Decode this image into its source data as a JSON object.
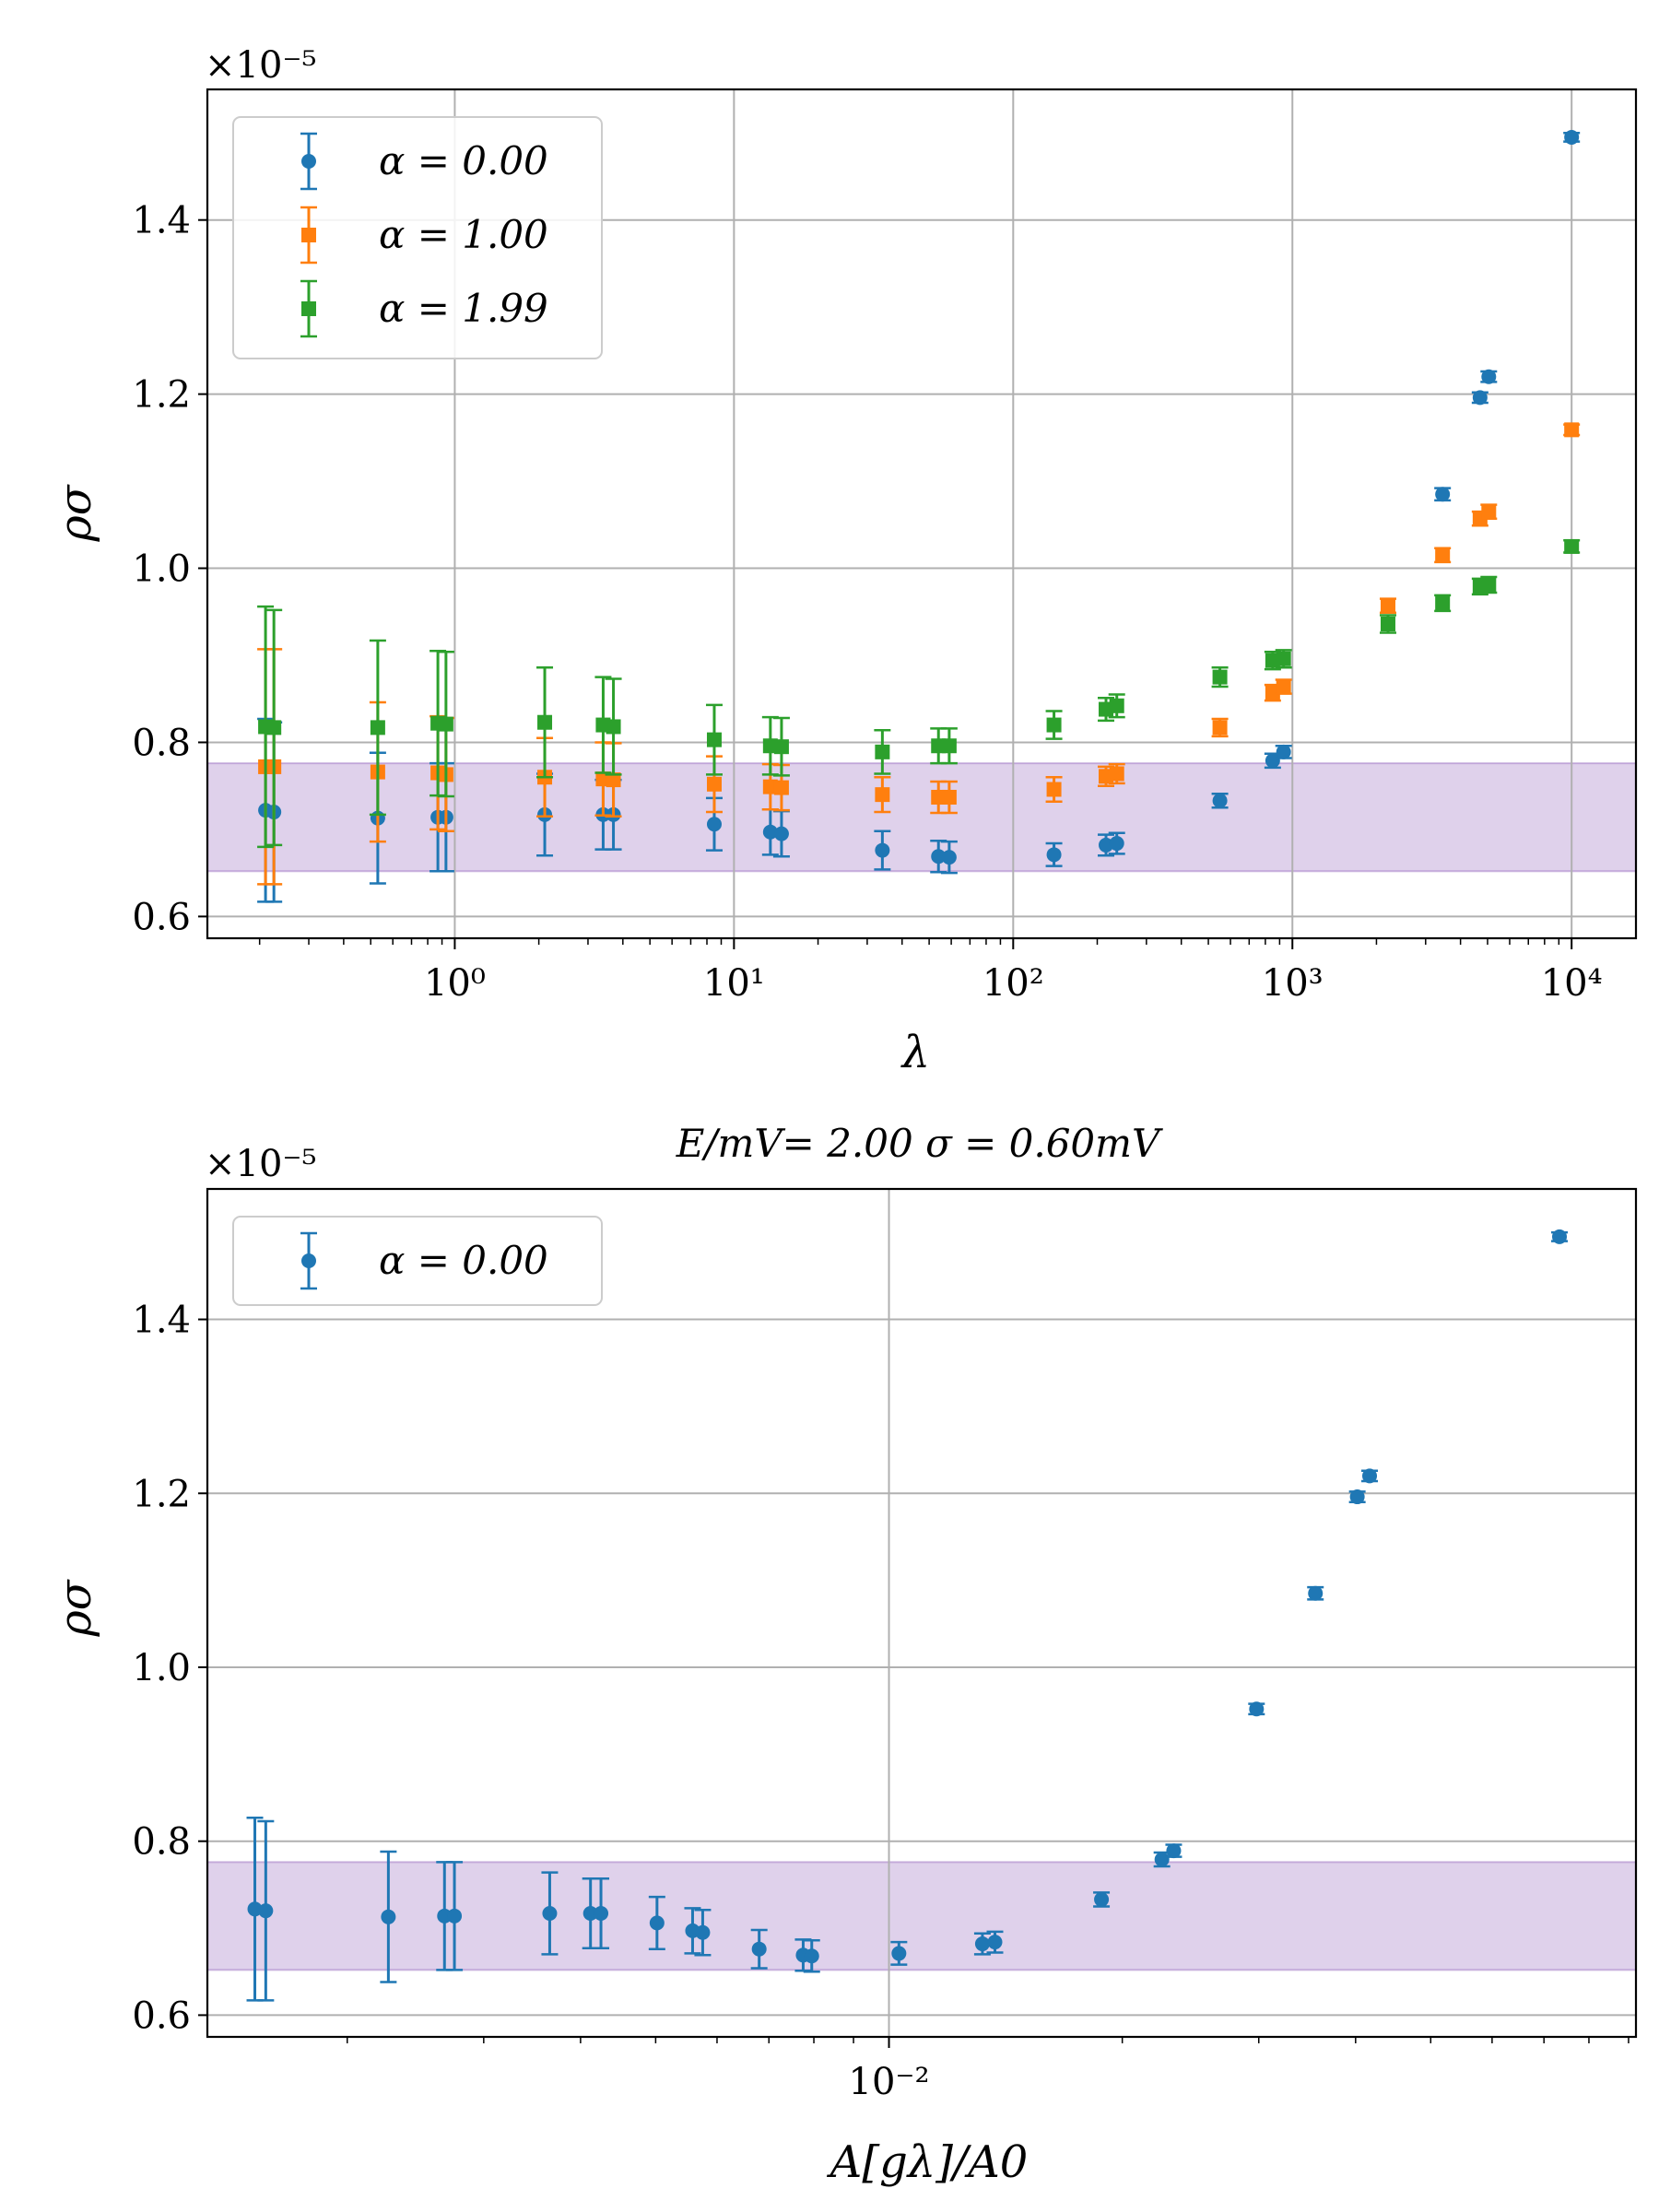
{
  "chart_data": [
    {
      "type": "scatter",
      "title": "",
      "xlabel": "λ",
      "ylabel": "ρσ",
      "xscale": "log",
      "xlim": [
        0.13,
        17000
      ],
      "ylim": [
        0.575,
        1.55
      ],
      "y_multiplier": "×10⁻⁵",
      "x_ticks": [
        {
          "value": 1,
          "label": "10⁰"
        },
        {
          "value": 10,
          "label": "10¹"
        },
        {
          "value": 100,
          "label": "10²"
        },
        {
          "value": 1000,
          "label": "10³"
        },
        {
          "value": 10000,
          "label": "10⁴"
        }
      ],
      "y_ticks": [
        {
          "value": 0.6,
          "label": "0.6"
        },
        {
          "value": 0.8,
          "label": "0.8"
        },
        {
          "value": 1.0,
          "label": "1.0"
        },
        {
          "value": 1.2,
          "label": "1.2"
        },
        {
          "value": 1.4,
          "label": "1.4"
        }
      ],
      "grid": true,
      "legend_position": "top-left",
      "band": {
        "y_low": 0.652,
        "y_high": 0.776,
        "color": "#9467bd"
      },
      "series": [
        {
          "name": "α = 0.00",
          "color": "#1f77b4",
          "marker": "circle",
          "points": [
            {
              "x": 0.21,
              "y": 0.722,
              "err": 0.105
            },
            {
              "x": 0.225,
              "y": 0.72,
              "err": 0.103
            },
            {
              "x": 0.53,
              "y": 0.713,
              "err": 0.075
            },
            {
              "x": 0.87,
              "y": 0.714,
              "err": 0.062
            },
            {
              "x": 0.93,
              "y": 0.714,
              "err": 0.062
            },
            {
              "x": 2.1,
              "y": 0.717,
              "err": 0.047
            },
            {
              "x": 3.4,
              "y": 0.717,
              "err": 0.04
            },
            {
              "x": 3.7,
              "y": 0.717,
              "err": 0.04
            },
            {
              "x": 8.5,
              "y": 0.706,
              "err": 0.03
            },
            {
              "x": 13.5,
              "y": 0.697,
              "err": 0.026
            },
            {
              "x": 14.8,
              "y": 0.695,
              "err": 0.026
            },
            {
              "x": 34,
              "y": 0.676,
              "err": 0.022
            },
            {
              "x": 54,
              "y": 0.669,
              "err": 0.018
            },
            {
              "x": 59,
              "y": 0.668,
              "err": 0.018
            },
            {
              "x": 140,
              "y": 0.671,
              "err": 0.013
            },
            {
              "x": 215,
              "y": 0.682,
              "err": 0.012
            },
            {
              "x": 235,
              "y": 0.684,
              "err": 0.012
            },
            {
              "x": 550,
              "y": 0.733,
              "err": 0.008
            },
            {
              "x": 850,
              "y": 0.779,
              "err": 0.008
            },
            {
              "x": 930,
              "y": 0.789,
              "err": 0.007
            },
            {
              "x": 3450,
              "y": 1.085,
              "err": 0.007
            },
            {
              "x": 4700,
              "y": 1.196,
              "err": 0.006
            },
            {
              "x": 5050,
              "y": 1.22,
              "err": 0.006
            },
            {
              "x": 10000,
              "y": 1.495,
              "err": 0.005
            }
          ]
        },
        {
          "name": "α = 1.00",
          "color": "#ff7f0e",
          "marker": "square",
          "points": [
            {
              "x": 0.21,
              "y": 0.772,
              "err": 0.135
            },
            {
              "x": 0.225,
              "y": 0.772,
              "err": 0.135
            },
            {
              "x": 0.53,
              "y": 0.766,
              "err": 0.08
            },
            {
              "x": 0.87,
              "y": 0.765,
              "err": 0.065
            },
            {
              "x": 0.93,
              "y": 0.763,
              "err": 0.065
            },
            {
              "x": 2.1,
              "y": 0.76,
              "err": 0.045
            },
            {
              "x": 3.4,
              "y": 0.758,
              "err": 0.042
            },
            {
              "x": 3.7,
              "y": 0.757,
              "err": 0.042
            },
            {
              "x": 8.5,
              "y": 0.752,
              "err": 0.032
            },
            {
              "x": 13.5,
              "y": 0.749,
              "err": 0.026
            },
            {
              "x": 14.8,
              "y": 0.748,
              "err": 0.026
            },
            {
              "x": 34,
              "y": 0.74,
              "err": 0.02
            },
            {
              "x": 54,
              "y": 0.737,
              "err": 0.018
            },
            {
              "x": 59,
              "y": 0.737,
              "err": 0.018
            },
            {
              "x": 140,
              "y": 0.746,
              "err": 0.014
            },
            {
              "x": 215,
              "y": 0.761,
              "err": 0.011
            },
            {
              "x": 235,
              "y": 0.764,
              "err": 0.011
            },
            {
              "x": 550,
              "y": 0.817,
              "err": 0.01
            },
            {
              "x": 850,
              "y": 0.857,
              "err": 0.009
            },
            {
              "x": 930,
              "y": 0.864,
              "err": 0.008
            },
            {
              "x": 2200,
              "y": 0.957,
              "err": 0.008
            },
            {
              "x": 3450,
              "y": 1.015,
              "err": 0.008
            },
            {
              "x": 4700,
              "y": 1.057,
              "err": 0.008
            },
            {
              "x": 5050,
              "y": 1.065,
              "err": 0.008
            },
            {
              "x": 10000,
              "y": 1.159,
              "err": 0.006
            }
          ]
        },
        {
          "name": "α = 1.99",
          "color": "#2ca02c",
          "marker": "square",
          "points": [
            {
              "x": 0.21,
              "y": 0.818,
              "err": 0.138
            },
            {
              "x": 0.225,
              "y": 0.817,
              "err": 0.135
            },
            {
              "x": 0.53,
              "y": 0.817,
              "err": 0.1
            },
            {
              "x": 0.87,
              "y": 0.822,
              "err": 0.083
            },
            {
              "x": 0.93,
              "y": 0.821,
              "err": 0.083
            },
            {
              "x": 2.1,
              "y": 0.823,
              "err": 0.063
            },
            {
              "x": 3.4,
              "y": 0.82,
              "err": 0.055
            },
            {
              "x": 3.7,
              "y": 0.818,
              "err": 0.055
            },
            {
              "x": 8.5,
              "y": 0.803,
              "err": 0.04
            },
            {
              "x": 13.5,
              "y": 0.796,
              "err": 0.033
            },
            {
              "x": 14.8,
              "y": 0.795,
              "err": 0.033
            },
            {
              "x": 34,
              "y": 0.789,
              "err": 0.025
            },
            {
              "x": 54,
              "y": 0.796,
              "err": 0.02
            },
            {
              "x": 59,
              "y": 0.796,
              "err": 0.02
            },
            {
              "x": 140,
              "y": 0.82,
              "err": 0.016
            },
            {
              "x": 215,
              "y": 0.838,
              "err": 0.013
            },
            {
              "x": 235,
              "y": 0.842,
              "err": 0.013
            },
            {
              "x": 550,
              "y": 0.875,
              "err": 0.011
            },
            {
              "x": 850,
              "y": 0.894,
              "err": 0.01
            },
            {
              "x": 930,
              "y": 0.896,
              "err": 0.01
            },
            {
              "x": 2200,
              "y": 0.936,
              "err": 0.01
            },
            {
              "x": 3450,
              "y": 0.96,
              "err": 0.009
            },
            {
              "x": 4700,
              "y": 0.979,
              "err": 0.009
            },
            {
              "x": 5050,
              "y": 0.981,
              "err": 0.009
            },
            {
              "x": 10000,
              "y": 1.025,
              "err": 0.007
            }
          ]
        }
      ]
    },
    {
      "type": "scatter",
      "title": "E/mV= 2.00 σ = 0.60mV",
      "xlabel": "A[gλ]/A0",
      "ylabel": "ρσ",
      "xscale": "log",
      "xlim": [
        0.00132,
        0.092
      ],
      "ylim": [
        0.575,
        1.55
      ],
      "y_multiplier": "×10⁻⁵",
      "x_ticks": [
        {
          "value": 0.01,
          "label": "10⁻²"
        }
      ],
      "y_ticks": [
        {
          "value": 0.6,
          "label": "0.6"
        },
        {
          "value": 0.8,
          "label": "0.8"
        },
        {
          "value": 1.0,
          "label": "1.0"
        },
        {
          "value": 1.2,
          "label": "1.2"
        },
        {
          "value": 1.4,
          "label": "1.4"
        }
      ],
      "grid": true,
      "legend_position": "top-left",
      "band": {
        "y_low": 0.652,
        "y_high": 0.776,
        "color": "#9467bd"
      },
      "series": [
        {
          "name": "α = 0.00",
          "color": "#1f77b4",
          "marker": "circle",
          "points": [
            {
              "x": 0.00152,
              "y": 0.722,
              "err": 0.105
            },
            {
              "x": 0.00157,
              "y": 0.72,
              "err": 0.103
            },
            {
              "x": 0.00226,
              "y": 0.713,
              "err": 0.075
            },
            {
              "x": 0.00267,
              "y": 0.714,
              "err": 0.062
            },
            {
              "x": 0.00275,
              "y": 0.714,
              "err": 0.062
            },
            {
              "x": 0.00365,
              "y": 0.717,
              "err": 0.047
            },
            {
              "x": 0.00412,
              "y": 0.717,
              "err": 0.04
            },
            {
              "x": 0.00425,
              "y": 0.717,
              "err": 0.04
            },
            {
              "x": 0.00502,
              "y": 0.706,
              "err": 0.03
            },
            {
              "x": 0.00558,
              "y": 0.697,
              "err": 0.026
            },
            {
              "x": 0.00575,
              "y": 0.695,
              "err": 0.026
            },
            {
              "x": 0.0068,
              "y": 0.676,
              "err": 0.022
            },
            {
              "x": 0.00775,
              "y": 0.669,
              "err": 0.018
            },
            {
              "x": 0.00795,
              "y": 0.668,
              "err": 0.018
            },
            {
              "x": 0.0103,
              "y": 0.671,
              "err": 0.013
            },
            {
              "x": 0.0132,
              "y": 0.682,
              "err": 0.012
            },
            {
              "x": 0.0137,
              "y": 0.684,
              "err": 0.012
            },
            {
              "x": 0.0188,
              "y": 0.733,
              "err": 0.008
            },
            {
              "x": 0.0225,
              "y": 0.779,
              "err": 0.008
            },
            {
              "x": 0.0233,
              "y": 0.789,
              "err": 0.007
            },
            {
              "x": 0.0298,
              "y": 0.952,
              "err": 0.006
            },
            {
              "x": 0.0355,
              "y": 1.085,
              "err": 0.007
            },
            {
              "x": 0.0402,
              "y": 1.196,
              "err": 0.006
            },
            {
              "x": 0.0417,
              "y": 1.22,
              "err": 0.006
            },
            {
              "x": 0.0733,
              "y": 1.495,
              "err": 0.005
            }
          ]
        }
      ]
    }
  ]
}
